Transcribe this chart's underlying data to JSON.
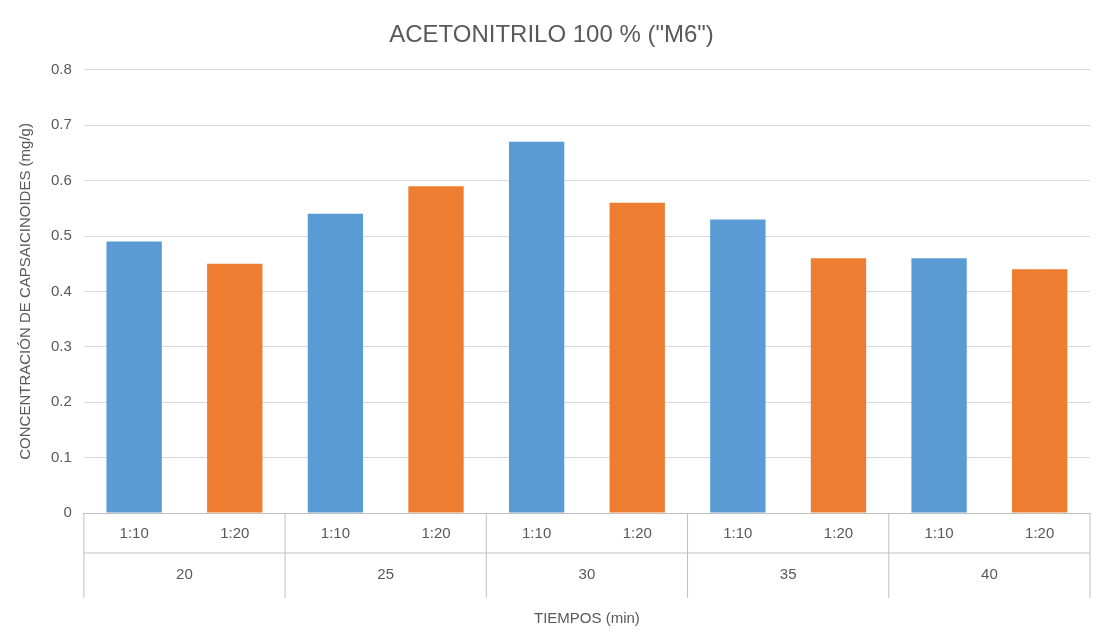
{
  "chart_data": {
    "type": "bar",
    "title": "ACETONITRILO 100 % (\"M6\")",
    "xlabel": "TIEMPOS (min)",
    "ylabel": "CONCENTRACIÓN DE CAPSAICINOIDES (mg/g)",
    "categories": [
      "1:10",
      "1:20",
      "1:10",
      "1:20",
      "1:10",
      "1:20",
      "1:10",
      "1:20",
      "1:10",
      "1:20"
    ],
    "values": [
      0.49,
      0.45,
      0.54,
      0.59,
      0.67,
      0.56,
      0.53,
      0.46,
      0.46,
      0.44
    ],
    "colors": [
      "#5b9bd5",
      "#ed7d31",
      "#5b9bd5",
      "#ed7d31",
      "#5b9bd5",
      "#ed7d31",
      "#5b9bd5",
      "#ed7d31",
      "#5b9bd5",
      "#ed7d31"
    ],
    "annotations": [
      "20",
      "25",
      "30",
      "35",
      "40"
    ],
    "ylim": [
      0,
      0.8
    ],
    "yticks": [
      0,
      0.1,
      0.2,
      0.3,
      0.4,
      0.5,
      0.6,
      0.7,
      0.8
    ],
    "grid": "y",
    "legend": false
  }
}
